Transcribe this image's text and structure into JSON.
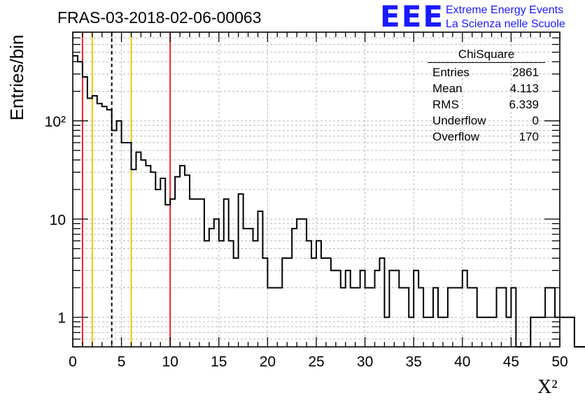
{
  "header": {
    "title": "FRAS-03-2018-02-06-00063",
    "logo_big": "EEE",
    "logo_line1": "Extreme Energy Events",
    "logo_line2": "La Scienza nelle Scuole"
  },
  "stats_box": {
    "title": "ChiSquare",
    "rows": [
      {
        "label": "Entries",
        "value": "2861"
      },
      {
        "label": "Mean",
        "value": "4.113"
      },
      {
        "label": "RMS",
        "value": "6.339"
      },
      {
        "label": "Underflow",
        "value": "0"
      },
      {
        "label": "Overflow",
        "value": "170"
      }
    ]
  },
  "chart_data": {
    "type": "bar",
    "subtype": "step-histogram",
    "title": "FRAS-03-2018-02-06-00063",
    "xlabel": "X²",
    "ylabel": "Entries/bin",
    "xlim": [
      0,
      50
    ],
    "ylim": [
      0.5,
      800
    ],
    "yscale": "log",
    "grid": true,
    "bin_width": 0.5,
    "x_ticks": [
      "0",
      "5",
      "10",
      "15",
      "20",
      "25",
      "30",
      "35",
      "40",
      "45",
      "50"
    ],
    "y_ticks": [
      {
        "value": 1,
        "label": "1"
      },
      {
        "value": 10,
        "label": "10"
      },
      {
        "value": 100,
        "label": "10²"
      }
    ],
    "values": [
      460,
      400,
      280,
      170,
      180,
      150,
      140,
      130,
      80,
      100,
      60,
      60,
      32,
      48,
      40,
      35,
      30,
      20,
      26,
      14,
      16,
      27,
      35,
      28,
      16,
      16,
      16,
      6,
      8,
      10,
      6,
      16,
      6,
      4,
      18,
      8,
      8,
      6,
      12,
      4,
      2,
      2,
      2,
      4,
      4,
      8,
      10,
      10,
      6,
      4,
      6,
      4,
      4,
      3,
      3,
      2,
      3,
      2,
      2,
      3,
      2,
      2,
      3,
      4,
      1,
      3,
      3,
      2,
      2,
      1,
      3,
      2,
      1,
      1,
      2,
      1,
      1,
      2,
      2,
      2,
      3,
      2,
      2,
      1,
      1,
      1,
      1,
      2,
      2,
      1,
      2,
      0,
      0,
      0,
      1,
      1,
      1,
      2,
      2,
      1,
      1,
      1,
      1,
      0,
      0,
      0,
      1,
      1,
      1,
      2,
      1,
      1,
      2,
      1,
      2,
      2,
      1,
      1,
      1,
      1,
      1,
      2,
      1,
      1,
      1,
      1,
      0,
      1,
      1,
      0,
      0,
      1,
      2,
      2,
      1,
      2,
      2,
      1,
      3,
      0
    ],
    "vertical_lines": [
      {
        "x": 1,
        "color": "#e8232b",
        "style": "solid"
      },
      {
        "x": 2,
        "color": "#f5c400",
        "style": "solid"
      },
      {
        "x": 4,
        "color": "#000000",
        "style": "dashed"
      },
      {
        "x": 6,
        "color": "#f5c400",
        "style": "solid"
      },
      {
        "x": 10,
        "color": "#e8232b",
        "style": "solid"
      }
    ],
    "line_color": "#000000"
  }
}
